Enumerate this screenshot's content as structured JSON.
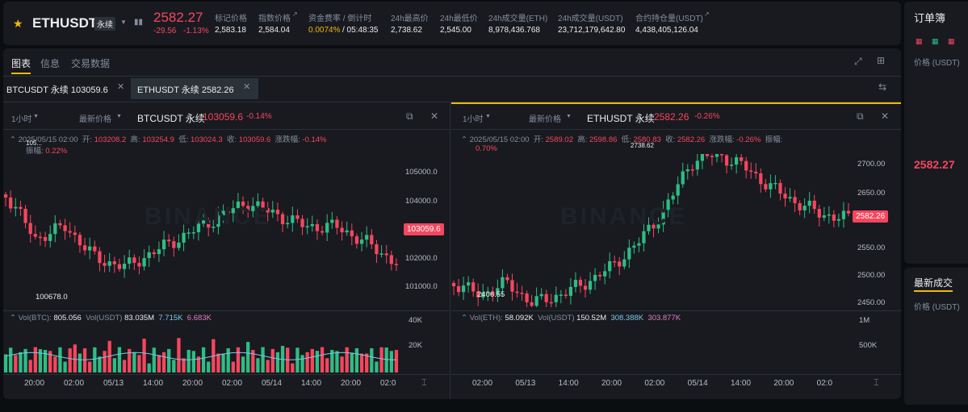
{
  "header": {
    "symbol": "ETHUSDT",
    "badge": "永续",
    "last_price": "2582.27",
    "change": "-29.56",
    "change_pct": "-1.13%",
    "stats": [
      {
        "label": "标记价格",
        "value": "2,583.18"
      },
      {
        "label": "指数价格",
        "value": "2,584.04"
      },
      {
        "label": "资金费率 / 倒计时",
        "value_a": "0.0074%",
        "value_b": "/ 05:48:35"
      },
      {
        "label": "24h最高价",
        "value": "2,738.62"
      },
      {
        "label": "24h最低价",
        "value": "2,545.00"
      },
      {
        "label": "24h成交量(ETH)",
        "value": "8,978,436.768"
      },
      {
        "label": "24h成交量(USDT)",
        "value": "23,712,179,642.80"
      },
      {
        "label": "合约持仓量(USDT)",
        "value": "4,438,405,126.04"
      }
    ]
  },
  "tabs": [
    "图表",
    "信息",
    "交易数据"
  ],
  "chart_tabs": [
    {
      "label": "BTCUSDT 永续 103059.6"
    },
    {
      "label": "ETHUSDT 永续 2582.26"
    }
  ],
  "charts": [
    {
      "interval": "1小时",
      "price_type": "最新价格",
      "title": "BTCUSDT 永续",
      "price": "103059.6",
      "pct": "-0.14%",
      "ohlc": {
        "date": "2025/05/15 02:00",
        "open_lbl": "开:",
        "open": "103208.2",
        "high_lbl": "高:",
        "high": "103254.9",
        "low_lbl": "低:",
        "low": "103024.3",
        "close_lbl": "收:",
        "close": "103059.6",
        "chg_lbl": "涨跌幅:",
        "chg": "-0.14%",
        "amp_lbl": "振幅:",
        "amp": "0.22%"
      },
      "y_ticks": [
        "105000.0",
        "104000.0",
        "102000.0",
        "101000.0"
      ],
      "low_marker": "100678.0",
      "high_marker": "105...",
      "vol": {
        "label": "Vol(BTC):",
        "value": "805.056",
        "label2": "Vol(USDT)",
        "value2": "83.035M",
        "ma1": "7.715K",
        "ma2": "6.683K"
      },
      "vol_ticks": [
        "40K",
        "20K"
      ],
      "time_ticks": [
        "20:00",
        "02:00",
        "05/13",
        "14:00",
        "20:00",
        "02:00",
        "05/14",
        "14:00",
        "20:00",
        "02:0"
      ]
    },
    {
      "interval": "1小时",
      "price_type": "最新价格",
      "title": "ETHUSDT 永续",
      "price": "2582.26",
      "pct": "-0.26%",
      "ohlc": {
        "date": "2025/05/15 02:00",
        "open_lbl": "开:",
        "open": "2589.02",
        "high_lbl": "高:",
        "high": "2598.86",
        "low_lbl": "低:",
        "low": "2580.83",
        "close_lbl": "收:",
        "close": "2582.26",
        "chg_lbl": "涨跌幅:",
        "chg": "-0.26%",
        "amp_lbl": "振幅:",
        "amp": "0.70%"
      },
      "y_ticks": [
        "2700.00",
        "2650.00",
        "2600.00",
        "2550.00",
        "2500.00",
        "2450.00"
      ],
      "low_marker": "2406.55",
      "high_marker": "2738.62",
      "vol": {
        "label": "Vol(ETH):",
        "value": "58.092K",
        "label2": "Vol(USDT)",
        "value2": "150.52M",
        "ma1": "308.388K",
        "ma2": "303.877K"
      },
      "vol_ticks": [
        "1M",
        "500K"
      ],
      "time_ticks": [
        "02:00",
        "05/13",
        "14:00",
        "20:00",
        "02:00",
        "05/14",
        "14:00",
        "20:00",
        "02:0"
      ]
    }
  ],
  "watermark": "BINANCE",
  "orderbook": {
    "title": "订单簿",
    "price_col": "价格 (USDT)",
    "mid_price": "2582.27",
    "trades_title": "最新成交",
    "trades_price_col": "价格 (USDT)"
  },
  "colors": {
    "up": "#2ebd85",
    "down": "#f6465d",
    "accent": "#f0b90b"
  }
}
